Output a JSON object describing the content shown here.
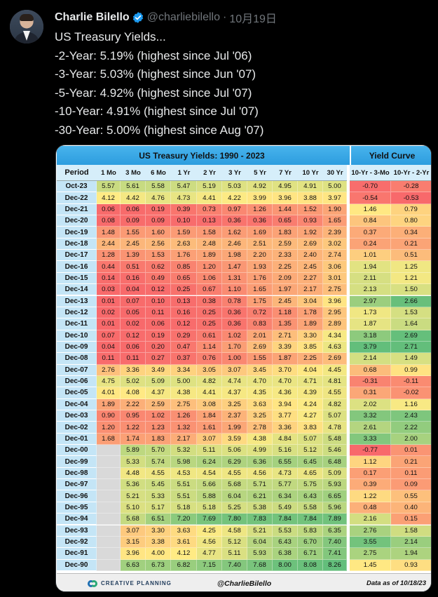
{
  "tweet": {
    "author_name": "Charlie Bilello",
    "handle": "@charliebilello",
    "separator": "·",
    "date": "10月19日",
    "lines": [
      "US Treasury Yields...",
      "-2-Year: 5.19% (highest since Jul '06)",
      "-3-Year: 5.03% (highest since Jun '07)",
      "-5-Year: 4.92% (highest since Jul '07)",
      "-10-Year: 4.91% (highest since Jul '07)",
      "-30-Year: 5.00% (highest since Aug '07)"
    ]
  },
  "table": {
    "title": "US Treasury Yields: 1990 - 2023",
    "curve_title": "Yield Curve",
    "headers": [
      "Period",
      "1 Mo",
      "3 Mo",
      "6 Mo",
      "1 Yr",
      "2 Yr",
      "3 Yr",
      "5 Yr",
      "7 Yr",
      "10 Yr",
      "30 Yr",
      "10-Yr - 3-Mo",
      "10-Yr - 2-Yr"
    ],
    "rows": [
      [
        "Oct-23",
        "5.57",
        "5.61",
        "5.58",
        "5.47",
        "5.19",
        "5.03",
        "4.92",
        "4.95",
        "4.91",
        "5.00",
        "-0.70",
        "-0.28"
      ],
      [
        "Dec-22",
        "4.12",
        "4.42",
        "4.76",
        "4.73",
        "4.41",
        "4.22",
        "3.99",
        "3.96",
        "3.88",
        "3.97",
        "-0.54",
        "-0.53"
      ],
      [
        "Dec-21",
        "0.06",
        "0.06",
        "0.19",
        "0.39",
        "0.73",
        "0.97",
        "1.26",
        "1.44",
        "1.52",
        "1.90",
        "1.46",
        "0.79"
      ],
      [
        "Dec-20",
        "0.08",
        "0.09",
        "0.09",
        "0.10",
        "0.13",
        "0.36",
        "0.36",
        "0.65",
        "0.93",
        "1.65",
        "0.84",
        "0.80"
      ],
      [
        "Dec-19",
        "1.48",
        "1.55",
        "1.60",
        "1.59",
        "1.58",
        "1.62",
        "1.69",
        "1.83",
        "1.92",
        "2.39",
        "0.37",
        "0.34"
      ],
      [
        "Dec-18",
        "2.44",
        "2.45",
        "2.56",
        "2.63",
        "2.48",
        "2.46",
        "2.51",
        "2.59",
        "2.69",
        "3.02",
        "0.24",
        "0.21"
      ],
      [
        "Dec-17",
        "1.28",
        "1.39",
        "1.53",
        "1.76",
        "1.89",
        "1.98",
        "2.20",
        "2.33",
        "2.40",
        "2.74",
        "1.01",
        "0.51"
      ],
      [
        "Dec-16",
        "0.44",
        "0.51",
        "0.62",
        "0.85",
        "1.20",
        "1.47",
        "1.93",
        "2.25",
        "2.45",
        "3.06",
        "1.94",
        "1.25"
      ],
      [
        "Dec-15",
        "0.14",
        "0.16",
        "0.49",
        "0.65",
        "1.06",
        "1.31",
        "1.76",
        "2.09",
        "2.27",
        "3.01",
        "2.11",
        "1.21"
      ],
      [
        "Dec-14",
        "0.03",
        "0.04",
        "0.12",
        "0.25",
        "0.67",
        "1.10",
        "1.65",
        "1.97",
        "2.17",
        "2.75",
        "2.13",
        "1.50"
      ],
      [
        "Dec-13",
        "0.01",
        "0.07",
        "0.10",
        "0.13",
        "0.38",
        "0.78",
        "1.75",
        "2.45",
        "3.04",
        "3.96",
        "2.97",
        "2.66"
      ],
      [
        "Dec-12",
        "0.02",
        "0.05",
        "0.11",
        "0.16",
        "0.25",
        "0.36",
        "0.72",
        "1.18",
        "1.78",
        "2.95",
        "1.73",
        "1.53"
      ],
      [
        "Dec-11",
        "0.01",
        "0.02",
        "0.06",
        "0.12",
        "0.25",
        "0.36",
        "0.83",
        "1.35",
        "1.89",
        "2.89",
        "1.87",
        "1.64"
      ],
      [
        "Dec-10",
        "0.07",
        "0.12",
        "0.19",
        "0.29",
        "0.61",
        "1.02",
        "2.01",
        "2.71",
        "3.30",
        "4.34",
        "3.18",
        "2.69"
      ],
      [
        "Dec-09",
        "0.04",
        "0.06",
        "0.20",
        "0.47",
        "1.14",
        "1.70",
        "2.69",
        "3.39",
        "3.85",
        "4.63",
        "3.79",
        "2.71"
      ],
      [
        "Dec-08",
        "0.11",
        "0.11",
        "0.27",
        "0.37",
        "0.76",
        "1.00",
        "1.55",
        "1.87",
        "2.25",
        "2.69",
        "2.14",
        "1.49"
      ],
      [
        "Dec-07",
        "2.76",
        "3.36",
        "3.49",
        "3.34",
        "3.05",
        "3.07",
        "3.45",
        "3.70",
        "4.04",
        "4.45",
        "0.68",
        "0.99"
      ],
      [
        "Dec-06",
        "4.75",
        "5.02",
        "5.09",
        "5.00",
        "4.82",
        "4.74",
        "4.70",
        "4.70",
        "4.71",
        "4.81",
        "-0.31",
        "-0.11"
      ],
      [
        "Dec-05",
        "4.01",
        "4.08",
        "4.37",
        "4.38",
        "4.41",
        "4.37",
        "4.35",
        "4.36",
        "4.39",
        "4.55",
        "0.31",
        "-0.02"
      ],
      [
        "Dec-04",
        "1.89",
        "2.22",
        "2.59",
        "2.75",
        "3.08",
        "3.25",
        "3.63",
        "3.94",
        "4.24",
        "4.82",
        "2.02",
        "1.16"
      ],
      [
        "Dec-03",
        "0.90",
        "0.95",
        "1.02",
        "1.26",
        "1.84",
        "2.37",
        "3.25",
        "3.77",
        "4.27",
        "5.07",
        "3.32",
        "2.43"
      ],
      [
        "Dec-02",
        "1.20",
        "1.22",
        "1.23",
        "1.32",
        "1.61",
        "1.99",
        "2.78",
        "3.36",
        "3.83",
        "4.78",
        "2.61",
        "2.22"
      ],
      [
        "Dec-01",
        "1.68",
        "1.74",
        "1.83",
        "2.17",
        "3.07",
        "3.59",
        "4.38",
        "4.84",
        "5.07",
        "5.48",
        "3.33",
        "2.00"
      ],
      [
        "Dec-00",
        "",
        "5.89",
        "5.70",
        "5.32",
        "5.11",
        "5.06",
        "4.99",
        "5.16",
        "5.12",
        "5.46",
        "-0.77",
        "0.01"
      ],
      [
        "Dec-99",
        "",
        "5.33",
        "5.74",
        "5.98",
        "6.24",
        "6.29",
        "6.36",
        "6.55",
        "6.45",
        "6.48",
        "1.12",
        "0.21"
      ],
      [
        "Dec-98",
        "",
        "4.48",
        "4.55",
        "4.53",
        "4.54",
        "4.55",
        "4.56",
        "4.73",
        "4.65",
        "5.09",
        "0.17",
        "0.11"
      ],
      [
        "Dec-97",
        "",
        "5.36",
        "5.45",
        "5.51",
        "5.66",
        "5.68",
        "5.71",
        "5.77",
        "5.75",
        "5.93",
        "0.39",
        "0.09"
      ],
      [
        "Dec-96",
        "",
        "5.21",
        "5.33",
        "5.51",
        "5.88",
        "6.04",
        "6.21",
        "6.34",
        "6.43",
        "6.65",
        "1.22",
        "0.55"
      ],
      [
        "Dec-95",
        "",
        "5.10",
        "5.17",
        "5.18",
        "5.18",
        "5.25",
        "5.38",
        "5.49",
        "5.58",
        "5.96",
        "0.48",
        "0.40"
      ],
      [
        "Dec-94",
        "",
        "5.68",
        "6.51",
        "7.20",
        "7.69",
        "7.80",
        "7.83",
        "7.84",
        "7.84",
        "7.89",
        "2.16",
        "0.15"
      ],
      [
        "Dec-93",
        "",
        "3.07",
        "3.30",
        "3.63",
        "4.25",
        "4.58",
        "5.21",
        "5.53",
        "5.83",
        "6.35",
        "2.76",
        "1.58"
      ],
      [
        "Dec-92",
        "",
        "3.15",
        "3.38",
        "3.61",
        "4.56",
        "5.12",
        "6.04",
        "6.43",
        "6.70",
        "7.40",
        "3.55",
        "2.14"
      ],
      [
        "Dec-91",
        "",
        "3.96",
        "4.00",
        "4.12",
        "4.77",
        "5.11",
        "5.93",
        "6.38",
        "6.71",
        "7.41",
        "2.75",
        "1.94"
      ],
      [
        "Dec-90",
        "",
        "6.63",
        "6.73",
        "6.82",
        "7.15",
        "7.40",
        "7.68",
        "8.00",
        "8.08",
        "8.26",
        "1.45",
        "0.93"
      ]
    ]
  },
  "footer": {
    "logo_text": "CREATIVE PLANNING",
    "handle": "@CharlieBilello",
    "date_note": "Data as of 10/18/23"
  },
  "colors": {
    "background": "#000000",
    "verified": "#1d9bf0",
    "title_bar": "#2d9ddf",
    "scale_low": "#f8696b",
    "scale_mid": "#ffeb84",
    "scale_high": "#63be7b"
  }
}
